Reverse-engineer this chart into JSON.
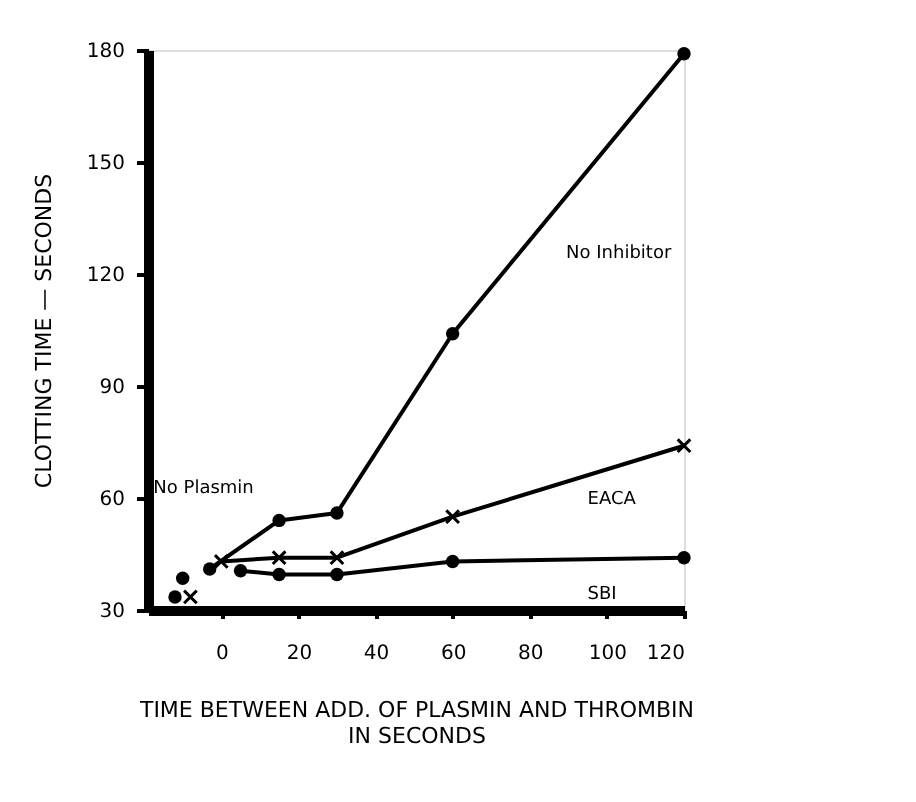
{
  "chart_data": {
    "type": "line",
    "xlabel": "TIME  BETWEEN  ADD. OF  PLASMIN  AND  THROMBIN\nIN  SECONDS",
    "ylabel": "CLOTTING  TIME — SECONDS",
    "xlim": [
      -19,
      120
    ],
    "xticks": [
      0,
      20,
      40,
      60,
      80,
      100,
      120
    ],
    "ylim": [
      30,
      180
    ],
    "yticks": [
      30,
      60,
      90,
      120,
      150,
      180
    ],
    "grid": false,
    "legend": false,
    "line_style": "solid",
    "series": [
      {
        "name": "No Inhibitor",
        "color": "#000000",
        "marker": "circle",
        "x": [
          -3,
          15,
          30,
          60,
          120
        ],
        "values": [
          41,
          54,
          56,
          104,
          179
        ]
      },
      {
        "name": "EACA",
        "color": "#000000",
        "marker": "cross",
        "x": [
          0,
          15,
          30,
          60,
          120
        ],
        "values": [
          43,
          44,
          44,
          55,
          74
        ]
      },
      {
        "name": "SBI",
        "color": "#000000",
        "marker": "circle",
        "x": [
          5,
          15,
          30,
          60,
          120
        ],
        "values": [
          40.5,
          39.5,
          39.5,
          43,
          44
        ]
      },
      {
        "type": "scatter",
        "color": "#000000",
        "marker": "circle",
        "x": [
          -12,
          -10
        ],
        "values": [
          33.5,
          38.5
        ]
      },
      {
        "type": "scatter",
        "color": "#000000",
        "marker": "cross",
        "x": [
          -8
        ],
        "values": [
          33.5
        ]
      }
    ],
    "annotations": [
      "No Plasmin"
    ]
  }
}
